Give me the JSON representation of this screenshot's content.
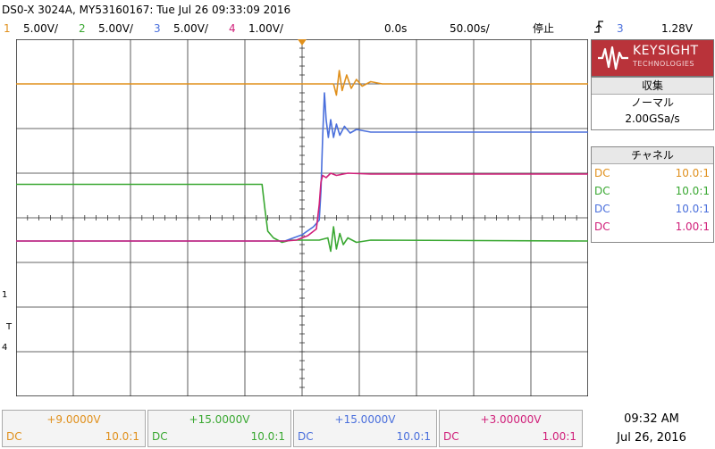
{
  "header": {
    "title": "DS0-X 3024A, MY53160167: Tue Jul 26 09:33:09 2016"
  },
  "channels": [
    {
      "num": "1",
      "scale": "5.00V/",
      "color": "#e0901c",
      "offset": "+9.0000V",
      "coupling": "DC",
      "probe": "10.0:1"
    },
    {
      "num": "2",
      "scale": "5.00V/",
      "color": "#3aa832",
      "offset": "+15.0000V",
      "coupling": "DC",
      "probe": "10.0:1"
    },
    {
      "num": "3",
      "scale": "5.00V/",
      "color": "#4a6fdc",
      "offset": "+15.0000V",
      "coupling": "DC",
      "probe": "10.0:1"
    },
    {
      "num": "4",
      "scale": "1.00V/",
      "color": "#d0207a",
      "offset": "+3.00000V",
      "coupling": "DC",
      "probe": "1.00:1"
    }
  ],
  "timebase": {
    "delay": "0.0s",
    "scale": "50.00s/",
    "run_state": "停止",
    "trigger_icon": "trigger-rising-edge-icon",
    "trigger_source": "3",
    "trigger_level": "1.28V"
  },
  "logo": {
    "brand": "KEYSIGHT",
    "sub": "TECHNOLOGIES"
  },
  "acquisition": {
    "header": "収集",
    "mode": "ノーマル",
    "rate": "2.00GSa/s"
  },
  "channel_panel": {
    "header": "チャネル"
  },
  "clock": {
    "time": "09:32 AM",
    "date": "Jul 26, 2016"
  },
  "chart_data": {
    "type": "line",
    "title": "",
    "xlabel": "",
    "ylabel": "",
    "x_divisions": 10,
    "y_divisions": 8,
    "grid": true,
    "xlim": [
      -5,
      5
    ],
    "ylim": [
      -4,
      4
    ],
    "series": [
      {
        "name": "1",
        "color": "#e0901c",
        "points": [
          [
            -5,
            3.0
          ],
          [
            0.55,
            3.0
          ],
          [
            0.6,
            2.75
          ],
          [
            0.65,
            3.3
          ],
          [
            0.7,
            2.85
          ],
          [
            0.78,
            3.2
          ],
          [
            0.86,
            2.9
          ],
          [
            0.95,
            3.1
          ],
          [
            1.05,
            2.95
          ],
          [
            1.2,
            3.05
          ],
          [
            1.4,
            3.0
          ],
          [
            5,
            3.0
          ]
        ]
      },
      {
        "name": "2",
        "color": "#3aa832",
        "points": [
          [
            -5,
            0.75
          ],
          [
            -0.7,
            0.75
          ],
          [
            -0.65,
            0.2
          ],
          [
            -0.6,
            -0.3
          ],
          [
            -0.5,
            -0.45
          ],
          [
            -0.35,
            -0.55
          ],
          [
            -0.2,
            -0.5
          ],
          [
            0.0,
            -0.5
          ],
          [
            0.3,
            -0.5
          ],
          [
            0.45,
            -0.45
          ],
          [
            0.5,
            -0.75
          ],
          [
            0.55,
            -0.2
          ],
          [
            0.6,
            -0.7
          ],
          [
            0.66,
            -0.35
          ],
          [
            0.72,
            -0.6
          ],
          [
            0.8,
            -0.45
          ],
          [
            0.95,
            -0.55
          ],
          [
            1.2,
            -0.5
          ],
          [
            5,
            -0.52
          ]
        ]
      },
      {
        "name": "3",
        "color": "#4a6fdc",
        "points": [
          [
            -5,
            -0.52
          ],
          [
            -0.3,
            -0.52
          ],
          [
            0.0,
            -0.38
          ],
          [
            0.2,
            -0.2
          ],
          [
            0.3,
            -0.05
          ],
          [
            0.33,
            0.6
          ],
          [
            0.36,
            1.8
          ],
          [
            0.39,
            2.8
          ],
          [
            0.42,
            2.2
          ],
          [
            0.46,
            1.8
          ],
          [
            0.5,
            2.2
          ],
          [
            0.55,
            1.8
          ],
          [
            0.6,
            2.1
          ],
          [
            0.66,
            1.85
          ],
          [
            0.74,
            2.05
          ],
          [
            0.84,
            1.9
          ],
          [
            0.95,
            1.98
          ],
          [
            1.2,
            1.92
          ],
          [
            5,
            1.92
          ]
        ]
      },
      {
        "name": "4",
        "color": "#d0207a",
        "points": [
          [
            -5,
            -0.52
          ],
          [
            -0.3,
            -0.52
          ],
          [
            -0.1,
            -0.5
          ],
          [
            0.1,
            -0.4
          ],
          [
            0.25,
            -0.25
          ],
          [
            0.3,
            0.3
          ],
          [
            0.33,
            0.8
          ],
          [
            0.36,
            0.95
          ],
          [
            0.42,
            0.9
          ],
          [
            0.5,
            1.0
          ],
          [
            0.6,
            0.95
          ],
          [
            0.8,
            1.0
          ],
          [
            1.2,
            0.98
          ],
          [
            5,
            0.98
          ]
        ]
      }
    ]
  }
}
